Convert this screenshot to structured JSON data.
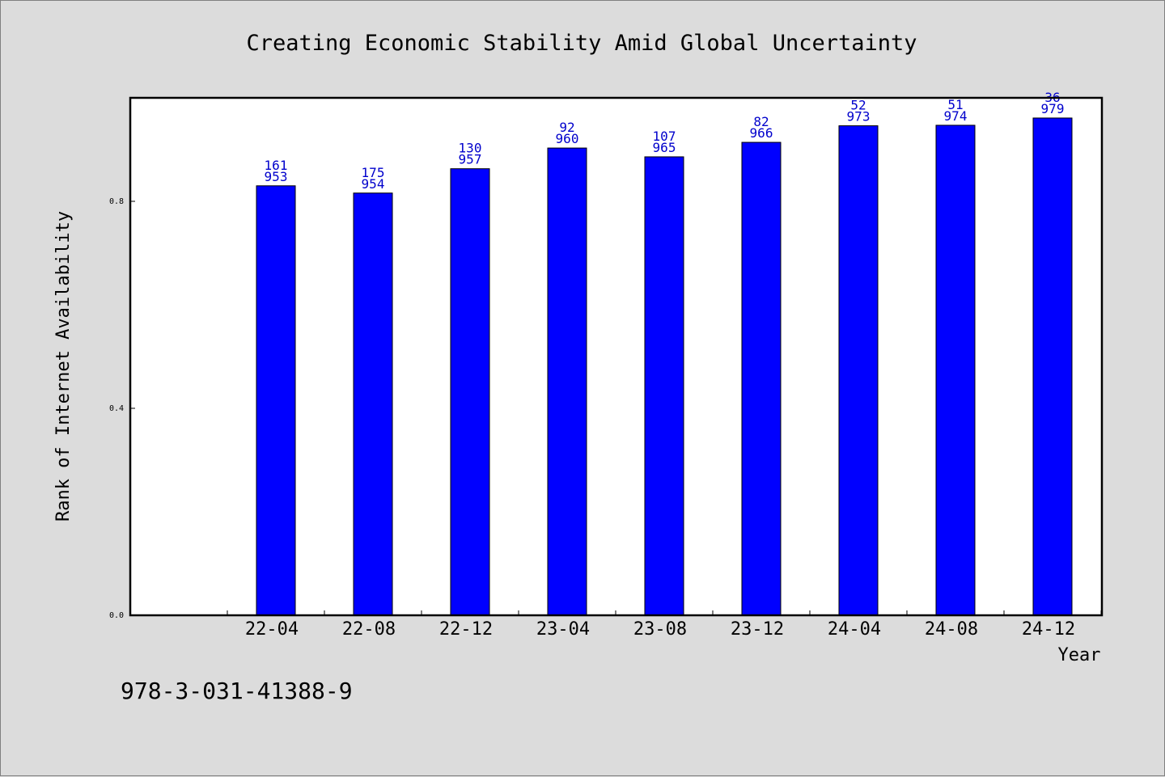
{
  "chart_data": {
    "type": "bar",
    "title": "Creating Economic Stability Amid Global Uncertainty",
    "xlabel": "Year",
    "ylabel": "Rank of Internet Availability",
    "ylim": [
      0,
      1.0
    ],
    "yticks": [
      "0.0",
      "0.4",
      "0.8"
    ],
    "ytick_values": [
      0.0,
      0.4,
      0.8
    ],
    "grid": false,
    "legend": "none",
    "categories": [
      "22-04",
      "22-08",
      "22-12",
      "23-04",
      "23-08",
      "23-12",
      "24-04",
      "24-08",
      "24-12"
    ],
    "series": [
      {
        "values": [
          0.83,
          0.816,
          0.863,
          0.903,
          0.886,
          0.914,
          0.946,
          0.947,
          0.961
        ],
        "label_top": [
          "161",
          "175",
          "130",
          "92",
          "107",
          "82",
          "52",
          "51",
          "36"
        ],
        "label_bottom": [
          "953",
          "954",
          "957",
          "960",
          "965",
          "966",
          "973",
          "974",
          "979"
        ]
      }
    ],
    "colors": {
      "bar_fill": "#0000ff",
      "bar_stroke": "#000000",
      "label": "#0000cc",
      "plot_bg": "#ffffff",
      "page_bg": "#dcdcdc"
    }
  },
  "footer": {
    "isbn": "978-3-031-41388-9"
  }
}
